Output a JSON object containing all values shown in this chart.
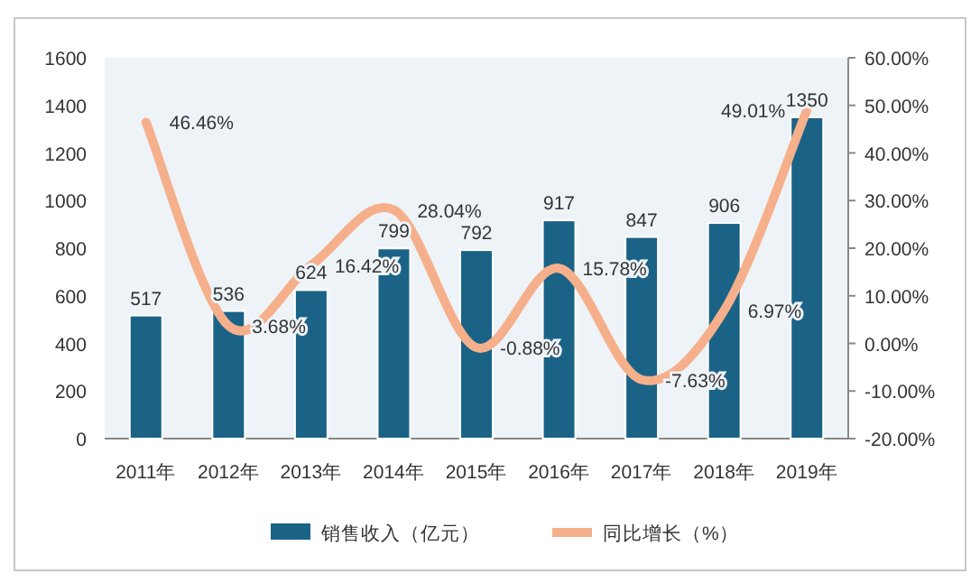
{
  "chart_data": {
    "type": "bar",
    "categories": [
      "2011年",
      "2012年",
      "2013年",
      "2014年",
      "2015年",
      "2016年",
      "2017年",
      "2018年",
      "2019年"
    ],
    "series": [
      {
        "name": "销售收入（亿元）",
        "color": "#1b6386",
        "values": [
          517,
          536,
          624,
          799,
          792,
          917,
          847,
          906,
          1350
        ]
      },
      {
        "name": "同比增长（%）",
        "type": "line",
        "axis": "y2",
        "color": "#f5b08b",
        "values": [
          46.46,
          3.68,
          16.42,
          28.04,
          -0.88,
          15.78,
          -7.63,
          6.97,
          49.01
        ],
        "value_labels": [
          "46.46%",
          "3.68%",
          "16.42%",
          "28.04%",
          "-0.88%",
          "15.78%",
          "-7.63%",
          "6.97%",
          "49.01%"
        ]
      }
    ],
    "ylim": [
      0,
      1600
    ],
    "yticks": [
      0,
      200,
      400,
      600,
      800,
      1000,
      1200,
      1400,
      1600
    ],
    "y2lim": [
      -20,
      60
    ],
    "y2ticks": [
      {
        "value": -20,
        "label": "-20.00%"
      },
      {
        "value": -10,
        "label": "-10.00%"
      },
      {
        "value": 0,
        "label": "0.00%"
      },
      {
        "value": 10,
        "label": "10.00%"
      },
      {
        "value": 20,
        "label": "20.00%"
      },
      {
        "value": 30,
        "label": "30.00%"
      },
      {
        "value": 40,
        "label": "40.00%"
      },
      {
        "value": 50,
        "label": "50.00%"
      },
      {
        "value": 60,
        "label": "60.00%"
      }
    ],
    "data_labels": true,
    "legend": "bottom"
  }
}
